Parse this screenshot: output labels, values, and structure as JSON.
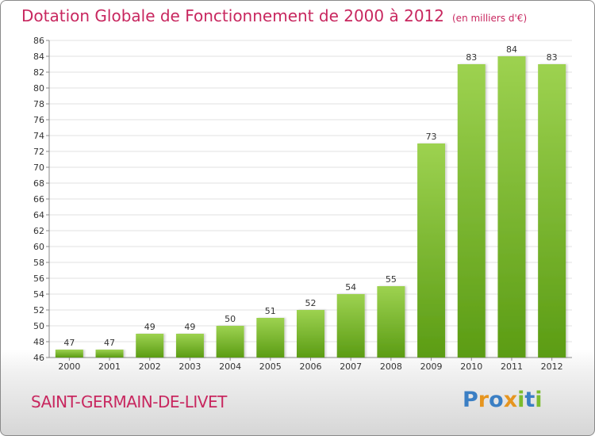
{
  "header": {
    "title": "Dotation Globale de Fonctionnement de 2000 à 2012",
    "subtitle": "(en milliers d'€)"
  },
  "commune": "SAINT-GERMAIN-DE-LIVET",
  "brand": {
    "name": "Proxiti",
    "letters": [
      "P",
      "r",
      "o",
      "x",
      "i",
      "t",
      "i"
    ],
    "letter_colors": [
      "#3b7fc4",
      "#e6951f",
      "#3b7fc4",
      "#e6951f",
      "#7cbc2e",
      "#3b7fc4",
      "#7cbc2e"
    ]
  },
  "colors": {
    "title": "#c8275f",
    "bar_light": "#9dd250",
    "bar_dark": "#5b9c14",
    "grid": "#e2e2e2"
  },
  "chart_data": {
    "type": "bar",
    "title": "Dotation Globale de Fonctionnement de 2000 à 2012",
    "subtitle": "(en milliers d'€)",
    "categories": [
      "2000",
      "2001",
      "2002",
      "2003",
      "2004",
      "2005",
      "2006",
      "2007",
      "2008",
      "2009",
      "2010",
      "2011",
      "2012"
    ],
    "values": [
      47,
      47,
      49,
      49,
      50,
      51,
      52,
      54,
      55,
      73,
      83,
      84,
      83
    ],
    "ylim": [
      46,
      86
    ],
    "ytick_step": 2,
    "grid": true,
    "legend": false
  }
}
